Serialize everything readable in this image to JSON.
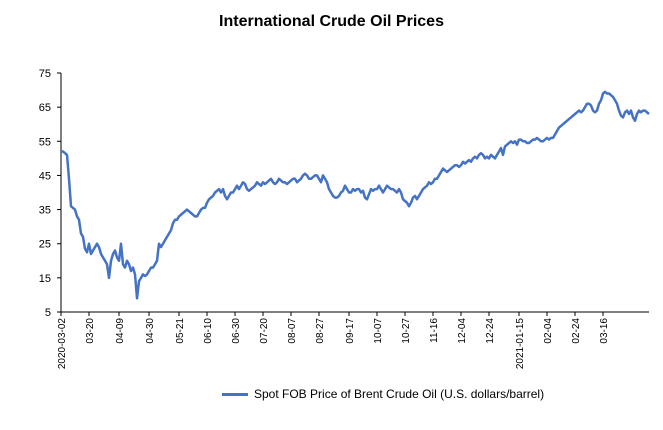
{
  "chart_data": {
    "type": "line",
    "title": "International Crude Oil Prices",
    "xlabel": "",
    "ylabel": "",
    "ylim": [
      5,
      75
    ],
    "yticks": [
      5,
      15,
      25,
      35,
      45,
      55,
      65,
      75
    ],
    "grid": false,
    "legend_position": "bottom",
    "line_color": "#4472C4",
    "xtick_labels": [
      "2020-03-02",
      "03-20",
      "04-09",
      "04-30",
      "05-21",
      "06-10",
      "06-30",
      "07-20",
      "08-07",
      "08-27",
      "09-17",
      "10-07",
      "10-27",
      "11-16",
      "12-04",
      "12-24",
      "2021-01-15",
      "02-04",
      "02-24",
      "03-16"
    ],
    "xtick_index": [
      0,
      14,
      29,
      44,
      59,
      73,
      87,
      101,
      115,
      129,
      144,
      158,
      172,
      186,
      200,
      214,
      229,
      243,
      257,
      271
    ],
    "series": [
      {
        "name": "Spot FOB Price of Brent Crude Oil (U.S. dollars/barrel)",
        "values": [
          52,
          52,
          51.5,
          51,
          44,
          36,
          35.5,
          35,
          33,
          32,
          28,
          27,
          23.5,
          22.5,
          25,
          22,
          23,
          24,
          25,
          24,
          22,
          21,
          20,
          19,
          15,
          20,
          22,
          23,
          21,
          20,
          25,
          19,
          18,
          20,
          19,
          17,
          18,
          16,
          9,
          14,
          15,
          16,
          15.5,
          16,
          17,
          18,
          18,
          19,
          20,
          25,
          24,
          25,
          26,
          27,
          28,
          29,
          31,
          32,
          32,
          33,
          33.5,
          34,
          34.5,
          35,
          34.5,
          34,
          33.5,
          33,
          33,
          34,
          35,
          35.5,
          35.5,
          37,
          38,
          38.5,
          39,
          40,
          40.5,
          41,
          40,
          41,
          39,
          38,
          39,
          40,
          40,
          41,
          42,
          41,
          42,
          43,
          42.5,
          41,
          40.5,
          41,
          41.5,
          42,
          43,
          42.5,
          42,
          43,
          42.5,
          43,
          43.5,
          44,
          43,
          42.5,
          43,
          44,
          43.5,
          43,
          43,
          42.5,
          43,
          43.5,
          44,
          44,
          43,
          43.5,
          44,
          45,
          45.5,
          45,
          44,
          44,
          44.5,
          45,
          45,
          44,
          43,
          45,
          44,
          43,
          41,
          40,
          39,
          38.5,
          38.5,
          39,
          40,
          40.5,
          42,
          41,
          40,
          40,
          41,
          40.5,
          41,
          41,
          40,
          40.5,
          38.5,
          38,
          39.5,
          41,
          40.5,
          41,
          41,
          42,
          41,
          40,
          41,
          42,
          41.5,
          41,
          41,
          40.5,
          40,
          41,
          40,
          38,
          37.5,
          37,
          36,
          37,
          38.5,
          39,
          38,
          39,
          40,
          41,
          41.5,
          42,
          43,
          42.5,
          43,
          44,
          44,
          45,
          46,
          47,
          46.5,
          46,
          46.5,
          47,
          47.5,
          48,
          48,
          47.5,
          48,
          49,
          48.5,
          49,
          49.5,
          49,
          50,
          50.5,
          50,
          51,
          51.5,
          51,
          50,
          50.5,
          50,
          51,
          50.5,
          50,
          51,
          52,
          53,
          51,
          53.5,
          54,
          54.5,
          55,
          54.5,
          55,
          54,
          55.5,
          55.5,
          55,
          55,
          54.5,
          54.5,
          55,
          55.5,
          55.5,
          56,
          55.5,
          55,
          55,
          55.5,
          56,
          55.5,
          56,
          56,
          57,
          58,
          59,
          59.5,
          60,
          60.5,
          61,
          61.5,
          62,
          62.5,
          63,
          63.5,
          64,
          63.5,
          64,
          65,
          66,
          66,
          65.5,
          64,
          63.5,
          64,
          66,
          67,
          69,
          69.5,
          69,
          69,
          68.5,
          68,
          67,
          66,
          64,
          62.5,
          62,
          63.5,
          64,
          63,
          64,
          62,
          61,
          63,
          64,
          63.5,
          64,
          64,
          63.5,
          63
        ]
      }
    ]
  }
}
